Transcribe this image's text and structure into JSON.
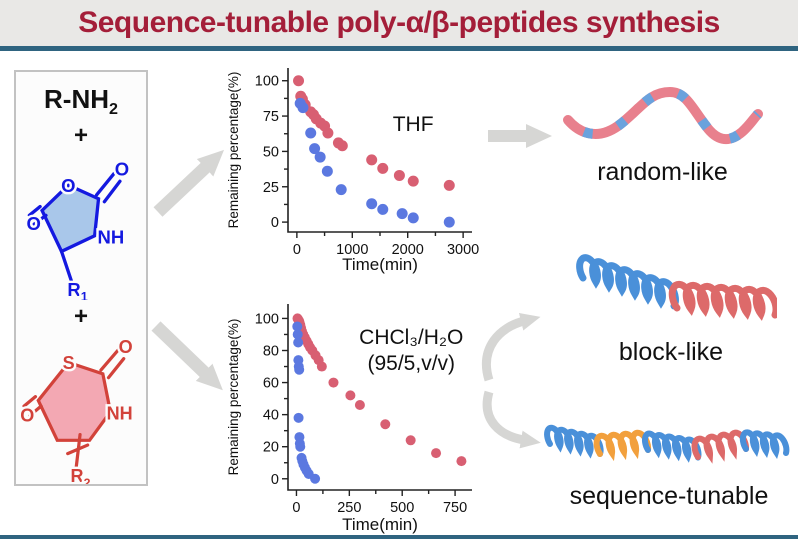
{
  "banner": {
    "title": "Sequence-tunable poly-α/β-peptides synthesis"
  },
  "reactants": {
    "amine": "R-NH",
    "amine_sub": "2",
    "plus1": "+",
    "plus2": "+",
    "nca": {
      "o_ring": "O",
      "o_top": "O",
      "o_left": "O",
      "nh": "NH",
      "r": "R",
      "r_sub": "1"
    },
    "nta": {
      "s": "S",
      "o_top": "O",
      "o_left": "O",
      "nh": "NH",
      "r": "R",
      "r_sub": "2"
    }
  },
  "chart_data": [
    {
      "type": "scatter",
      "annotation": {
        "lines": [
          "THF"
        ]
      },
      "xlabel": "Time(min)",
      "ylabel": "Remaining percentage(%)",
      "xlim": [
        -160,
        3160
      ],
      "ylim": [
        -7,
        109
      ],
      "xticks": [
        0,
        1000,
        2000,
        3000
      ],
      "yticks": [
        0,
        25,
        50,
        75,
        100
      ],
      "grid": false,
      "legend": "none",
      "series": [
        {
          "name": "red",
          "color": "#d85f72",
          "points": [
            [
              30,
              100
            ],
            [
              70,
              89
            ],
            [
              100,
              87
            ],
            [
              150,
              83
            ],
            [
              250,
              78
            ],
            [
              300,
              76
            ],
            [
              350,
              73
            ],
            [
              430,
              70
            ],
            [
              500,
              68
            ],
            [
              560,
              63
            ],
            [
              750,
              56
            ],
            [
              820,
              54
            ],
            [
              1350,
              44
            ],
            [
              1550,
              38
            ],
            [
              1850,
              33
            ],
            [
              2100,
              29
            ],
            [
              2750,
              26
            ]
          ]
        },
        {
          "name": "blue",
          "color": "#5b78e0",
          "points": [
            [
              60,
              84
            ],
            [
              110,
              81
            ],
            [
              250,
              63
            ],
            [
              320,
              52
            ],
            [
              420,
              46
            ],
            [
              550,
              36
            ],
            [
              800,
              23
            ],
            [
              1350,
              13
            ],
            [
              1550,
              9
            ],
            [
              1900,
              6
            ],
            [
              2100,
              3
            ],
            [
              2750,
              0
            ]
          ]
        }
      ]
    },
    {
      "type": "scatter",
      "annotation": {
        "lines": [
          "CHCl₃/H₂O",
          "(95/5,v/v)"
        ]
      },
      "xlabel": "Time(min)",
      "ylabel": "Remaining percentage(%)",
      "xlim": [
        -40,
        830
      ],
      "ylim": [
        -7,
        109
      ],
      "xticks": [
        0,
        250,
        500,
        750
      ],
      "yticks": [
        0,
        20,
        40,
        60,
        80,
        100
      ],
      "grid": false,
      "legend": "none",
      "series": [
        {
          "name": "red",
          "color": "#d85f72",
          "points": [
            [
              5,
              100
            ],
            [
              10,
              99
            ],
            [
              14,
              98
            ],
            [
              18,
              96
            ],
            [
              22,
              94
            ],
            [
              26,
              92
            ],
            [
              32,
              90
            ],
            [
              40,
              88
            ],
            [
              48,
              86
            ],
            [
              56,
              84
            ],
            [
              64,
              82
            ],
            [
              75,
              80
            ],
            [
              90,
              77
            ],
            [
              105,
              74
            ],
            [
              120,
              70
            ],
            [
              175,
              60
            ],
            [
              255,
              52
            ],
            [
              300,
              46
            ],
            [
              420,
              34
            ],
            [
              540,
              24
            ],
            [
              660,
              16
            ],
            [
              780,
              11
            ]
          ]
        },
        {
          "name": "blue",
          "color": "#5b78e0",
          "points": [
            [
              4,
              95
            ],
            [
              6,
              90
            ],
            [
              8,
              85
            ],
            [
              9,
              74
            ],
            [
              11,
              70
            ],
            [
              13,
              68
            ],
            [
              10,
              38
            ],
            [
              14,
              26
            ],
            [
              16,
              22
            ],
            [
              18,
              20
            ],
            [
              24,
              13
            ],
            [
              28,
              11
            ],
            [
              33,
              9
            ],
            [
              40,
              7
            ],
            [
              48,
              5
            ],
            [
              58,
              3
            ],
            [
              88,
              0
            ]
          ]
        }
      ]
    }
  ],
  "products": [
    {
      "label": "random-like"
    },
    {
      "label": "block-like"
    },
    {
      "label": "sequence-tunable"
    }
  ]
}
